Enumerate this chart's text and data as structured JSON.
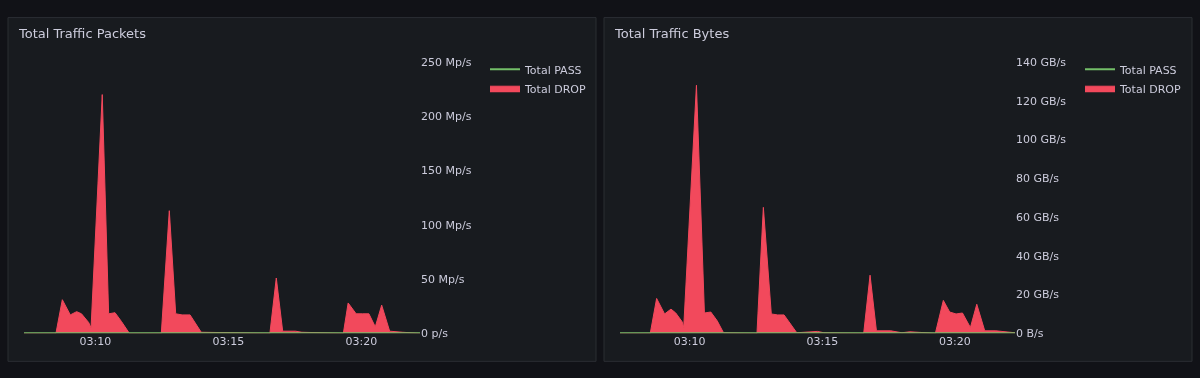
{
  "chart_data": [
    {
      "type": "area",
      "title": "Total Traffic Packets",
      "legend": "right",
      "grid": false,
      "xlim": [
        3.122,
        3.37
      ],
      "xticks": [
        {
          "value": 3.1667,
          "label": "03:10"
        },
        {
          "value": 3.25,
          "label": "03:15"
        },
        {
          "value": 3.3333,
          "label": "03:20"
        }
      ],
      "ylim": [
        0,
        250
      ],
      "yticks": [
        {
          "value": 0,
          "label": "0 p/s"
        },
        {
          "value": 50,
          "label": "50 Mp/s"
        },
        {
          "value": 100,
          "label": "100 Mp/s"
        },
        {
          "value": 150,
          "label": "150 Mp/s"
        },
        {
          "value": 200,
          "label": "200 Mp/s"
        },
        {
          "value": 250,
          "label": "250 Mp/s"
        }
      ],
      "series": [
        {
          "name": "Total PASS",
          "type": "line",
          "color": "#73bf69",
          "x": [
            3.122,
            3.37
          ],
          "values": [
            0,
            0
          ]
        },
        {
          "name": "Total DROP",
          "color": "#f2495c",
          "x": [
            3.122,
            3.142,
            3.146,
            3.151,
            3.155,
            3.158,
            3.1625,
            3.164,
            3.171,
            3.175,
            3.179,
            3.183,
            3.188,
            3.208,
            3.213,
            3.217,
            3.221,
            3.226,
            3.233,
            3.276,
            3.28,
            3.284,
            3.292,
            3.296,
            3.322,
            3.325,
            3.33,
            3.334,
            3.338,
            3.342,
            3.346,
            3.351,
            3.359,
            3.37
          ],
          "values": [
            0,
            0,
            31,
            17,
            20,
            18,
            10,
            5,
            220,
            18,
            19,
            11,
            0,
            0,
            113,
            18,
            17,
            17,
            1,
            0,
            51,
            2,
            2,
            1,
            0,
            28,
            18,
            18,
            18,
            6,
            26,
            2,
            1,
            0
          ]
        }
      ]
    },
    {
      "type": "area",
      "title": "Total Traffic Bytes",
      "legend": "right",
      "grid": false,
      "xlim": [
        3.123,
        3.371
      ],
      "xticks": [
        {
          "value": 3.1667,
          "label": "03:10"
        },
        {
          "value": 3.25,
          "label": "03:15"
        },
        {
          "value": 3.3333,
          "label": "03:20"
        }
      ],
      "ylim": [
        0,
        140
      ],
      "yticks": [
        {
          "value": 0,
          "label": "0 B/s"
        },
        {
          "value": 20,
          "label": "20 GB/s"
        },
        {
          "value": 40,
          "label": "40 GB/s"
        },
        {
          "value": 60,
          "label": "60 GB/s"
        },
        {
          "value": 80,
          "label": "80 GB/s"
        },
        {
          "value": 100,
          "label": "100 GB/s"
        },
        {
          "value": 120,
          "label": "120 GB/s"
        },
        {
          "value": 140,
          "label": "140 GB/s"
        }
      ],
      "series": [
        {
          "name": "Total PASS",
          "type": "line",
          "color": "#73bf69",
          "x": [
            3.123,
            3.371
          ],
          "values": [
            0,
            0
          ]
        },
        {
          "name": "Total DROP",
          "color": "#f2495c",
          "x": [
            3.123,
            3.142,
            3.146,
            3.151,
            3.155,
            3.158,
            3.162,
            3.163,
            3.171,
            3.176,
            3.18,
            3.184,
            3.188,
            3.209,
            3.213,
            3.218,
            3.222,
            3.226,
            3.234,
            3.247,
            3.251,
            3.276,
            3.28,
            3.284,
            3.293,
            3.3,
            3.305,
            3.321,
            3.326,
            3.33,
            3.334,
            3.338,
            3.343,
            3.347,
            3.352,
            3.359,
            3.371
          ],
          "values": [
            0,
            0,
            18,
            10,
            12.5,
            10.5,
            6,
            3,
            128,
            10.5,
            11,
            6.5,
            0.3,
            0,
            65,
            10,
            9.5,
            9.5,
            0.3,
            1,
            0.3,
            0,
            30,
            1.3,
            1.3,
            0.3,
            0.8,
            0,
            17,
            11,
            10,
            10.5,
            3,
            15,
            1.3,
            1.3,
            0.3
          ]
        }
      ]
    }
  ]
}
